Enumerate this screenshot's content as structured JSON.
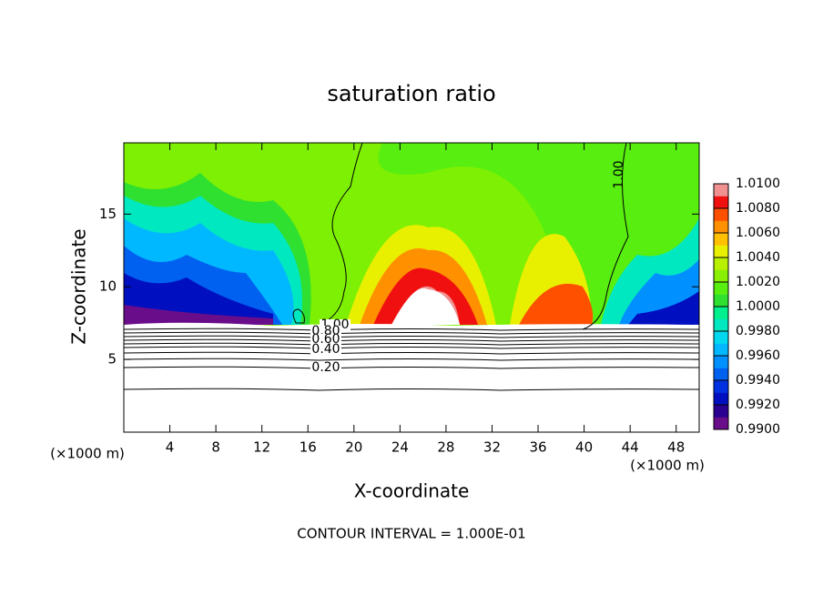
{
  "chart_data": {
    "type": "contour",
    "title": "saturation ratio",
    "x_label": "X-coordinate",
    "y_label": "Z-coordinate",
    "x_unit": "(×1000 m)",
    "y_unit": "(×1000 m)",
    "footer": "CONTOUR INTERVAL = 1.000E-01",
    "xlim": [
      0,
      50
    ],
    "xticks": [
      4,
      8,
      12,
      16,
      20,
      24,
      28,
      32,
      36,
      40,
      44,
      48
    ],
    "ylim": [
      0,
      19.9
    ],
    "yticks": [
      5,
      10,
      15
    ],
    "colorbar_lim": [
      0.99,
      1.01
    ],
    "colorbar_ticks": [
      {
        "value": 0.99,
        "label": "0.9900"
      },
      {
        "value": 0.992,
        "label": "0.9920"
      },
      {
        "value": 0.994,
        "label": "0.9940"
      },
      {
        "value": 0.996,
        "label": "0.9960"
      },
      {
        "value": 0.998,
        "label": "0.9980"
      },
      {
        "value": 1.0,
        "label": "1.0000"
      },
      {
        "value": 1.002,
        "label": "1.0020"
      },
      {
        "value": 1.004,
        "label": "1.0040"
      },
      {
        "value": 1.006,
        "label": "1.0060"
      },
      {
        "value": 1.008,
        "label": "1.0080"
      },
      {
        "value": 1.01,
        "label": "1.0100"
      }
    ],
    "colors": [
      "#6a0d8a",
      "#2a0090",
      "#0010c0",
      "#0030e0",
      "#0060f0",
      "#0090ff",
      "#00b8ff",
      "#00d8f0",
      "#00e8c0",
      "#00f090",
      "#30e030",
      "#58ee10",
      "#88f000",
      "#b8f000",
      "#e8f000",
      "#ffc000",
      "#ff9000",
      "#ff5000",
      "#f01010",
      "#f09090"
    ],
    "contour_labels": [
      {
        "value": 1.0,
        "label": "1.00"
      },
      {
        "value": 1.0,
        "label": "1.00"
      },
      {
        "value": 0.8,
        "label": "0.80"
      },
      {
        "value": 0.6,
        "label": "0.60"
      },
      {
        "value": 0.4,
        "label": "0.40"
      },
      {
        "value": 0.2,
        "label": "0.20"
      }
    ]
  }
}
